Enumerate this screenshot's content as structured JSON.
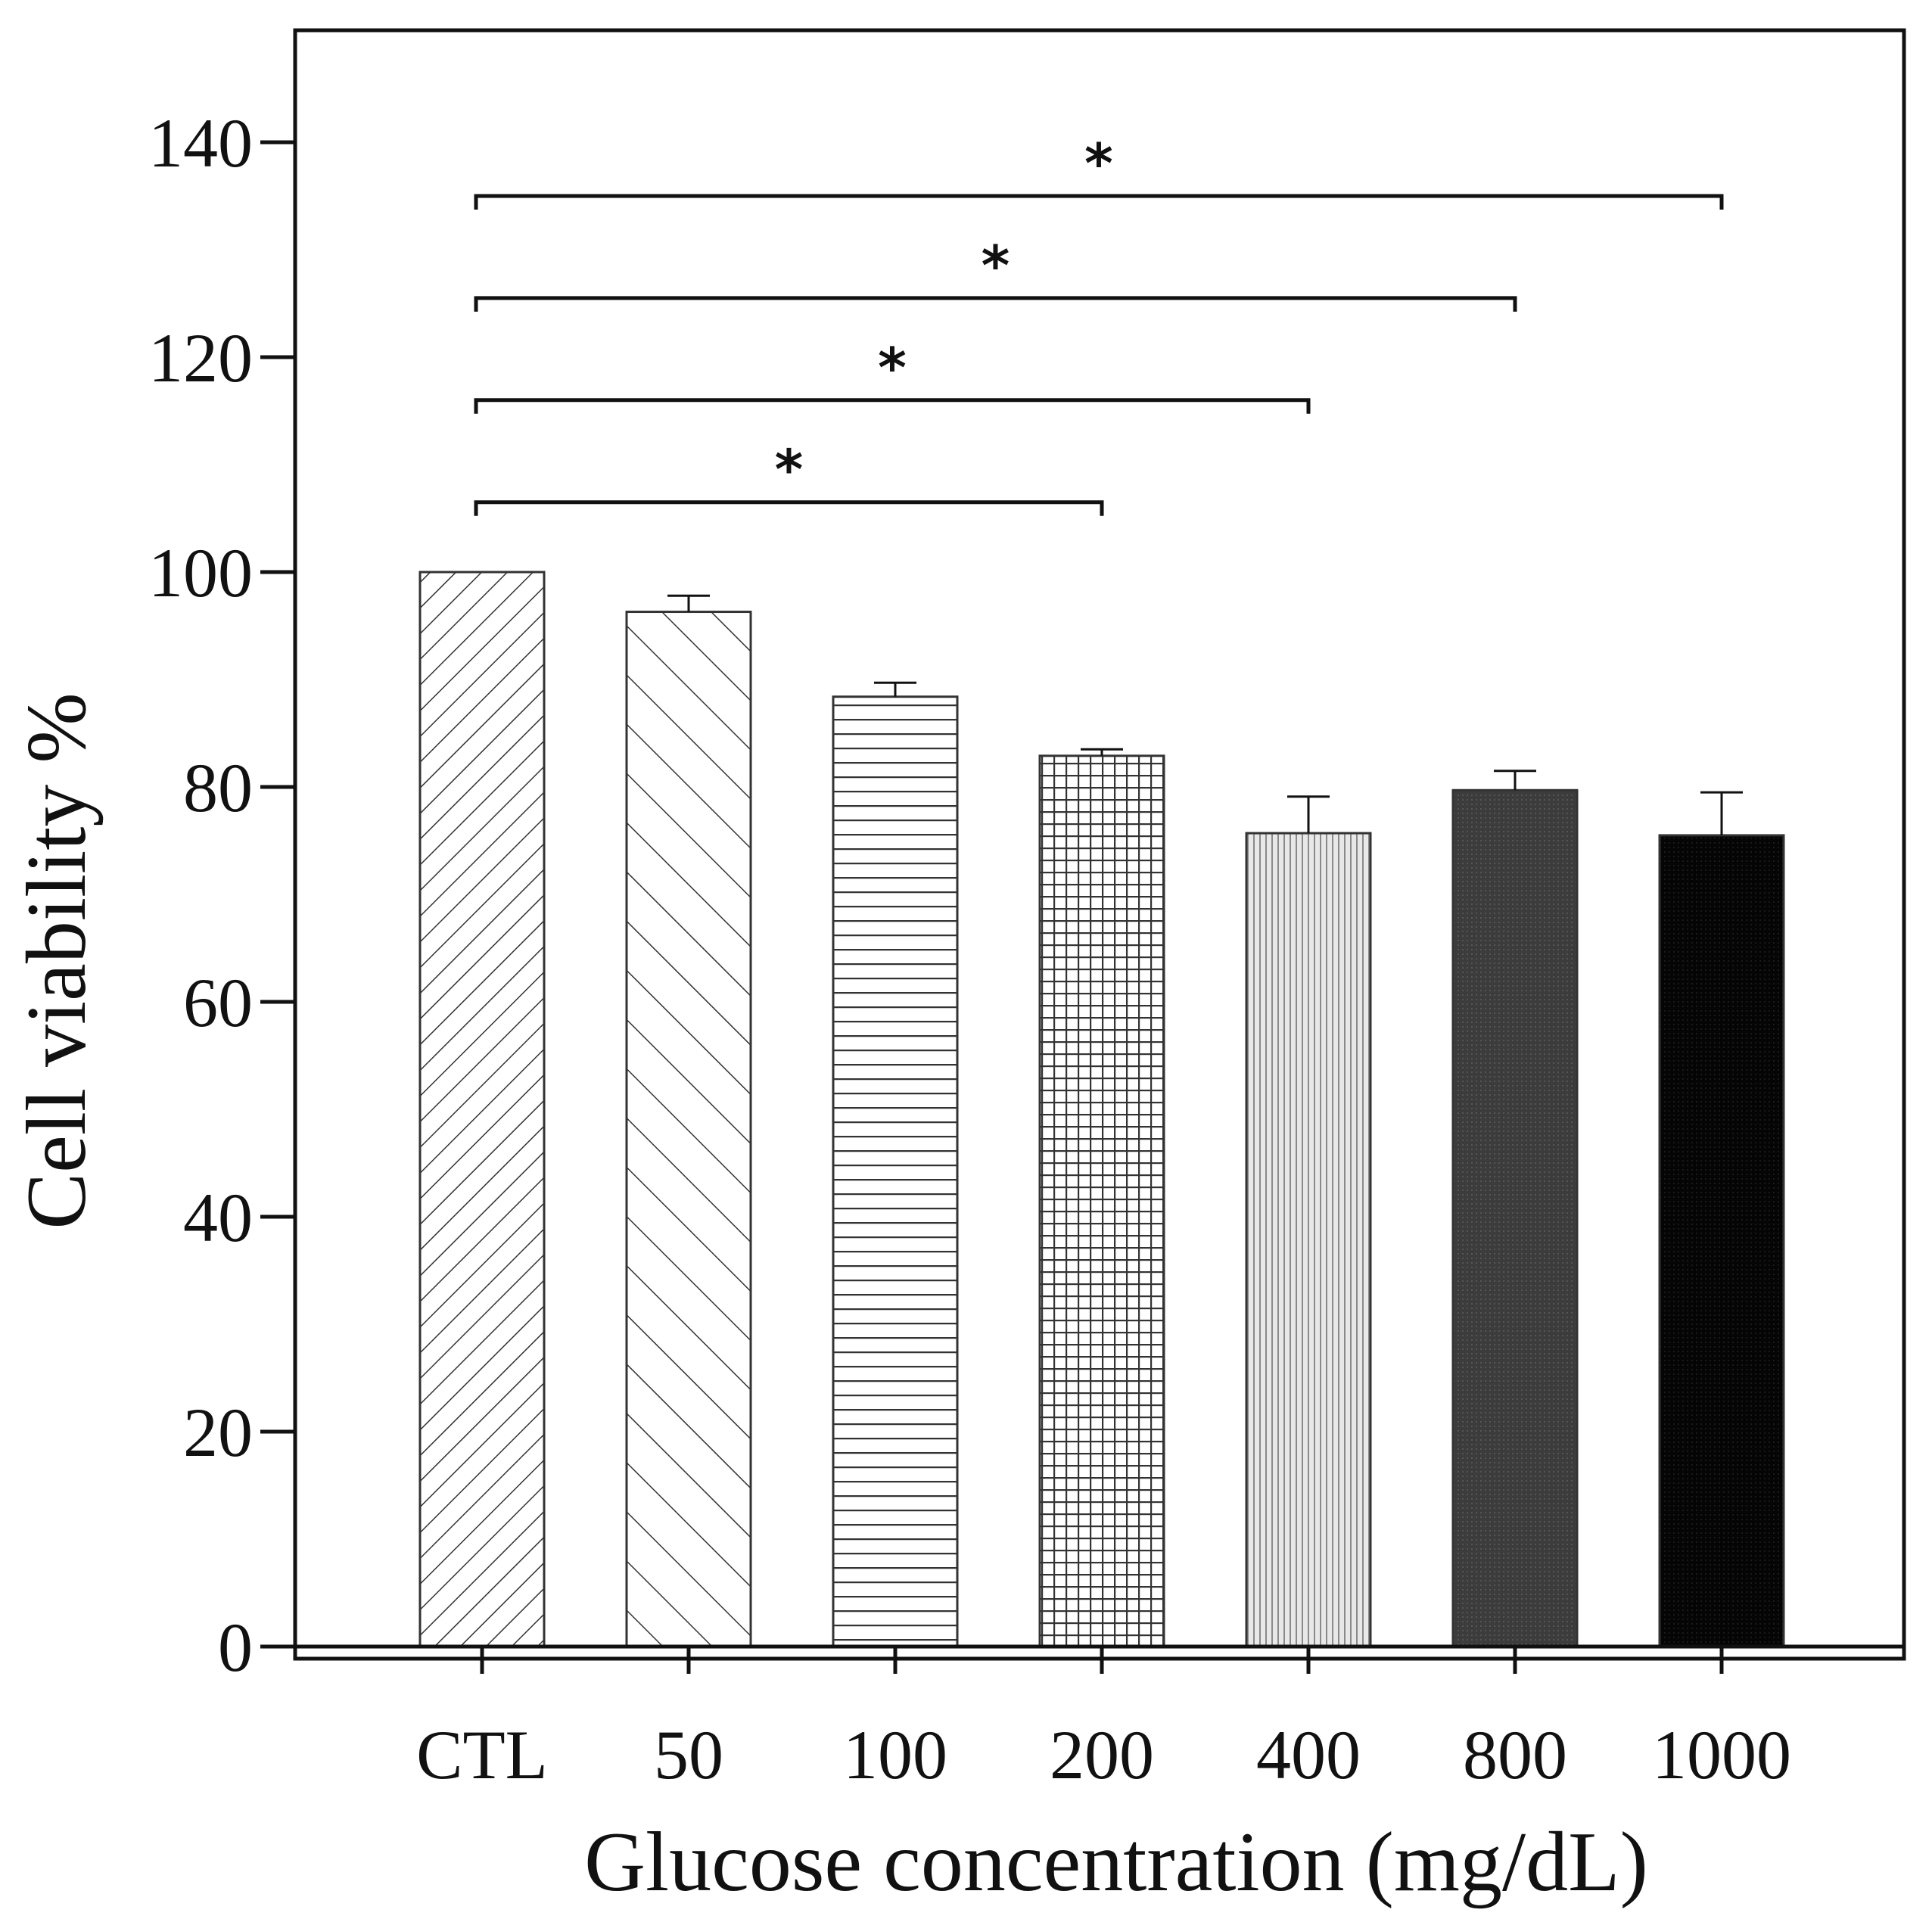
{
  "chart_data": {
    "type": "bar",
    "title": "",
    "xlabel": "Glucose concentration (mg/dL)",
    "ylabel": "Cell viability %",
    "ylim": [
      0,
      150
    ],
    "yticks": [
      0,
      20,
      40,
      60,
      80,
      100,
      120,
      140
    ],
    "grid": false,
    "categories": [
      "CTL",
      "50",
      "100",
      "200",
      "400",
      "800",
      "1000"
    ],
    "values": [
      100,
      96.3,
      88.4,
      82.9,
      75.7,
      79.7,
      75.5
    ],
    "errors": [
      0,
      1.5,
      1.3,
      0.6,
      3.4,
      1.8,
      4.0
    ],
    "fill_patterns": [
      "diagonal-dense",
      "diagonal-sparse",
      "horizontal-lines",
      "grid",
      "vertical-lines",
      "dark-gray",
      "black"
    ],
    "significance": [
      {
        "from": "CTL",
        "to": "200",
        "level": 106.5,
        "label": "*"
      },
      {
        "from": "CTL",
        "to": "400",
        "level": 116.0,
        "label": "*"
      },
      {
        "from": "CTL",
        "to": "800",
        "level": 125.5,
        "label": "*"
      },
      {
        "from": "CTL",
        "to": "1000",
        "level": 135.0,
        "label": "*"
      }
    ]
  },
  "colors": {
    "axis": "#111111",
    "bar_outline": "#333333",
    "hatch": "#333333",
    "dark_fill": "#3c3c3c",
    "black_fill": "#050505"
  }
}
